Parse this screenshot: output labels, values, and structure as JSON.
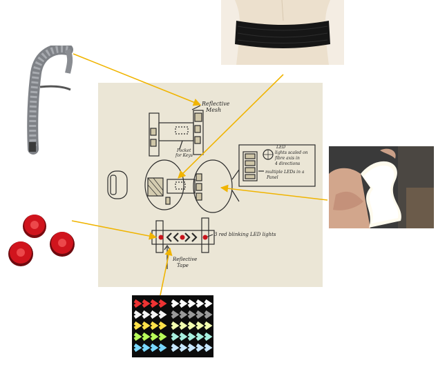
{
  "sketch": {
    "labels": {
      "mesh_line1": "Reflective",
      "mesh_line2": "Mesh",
      "pocket_line1": "Pocket",
      "pocket_line2": "for Keys",
      "panel_line1": "LED",
      "panel_line2": "lights scaled on",
      "panel_line3": "fibre axis in",
      "panel_line4": "4 directions",
      "panel_line5": "multiple LEDs in a",
      "panel_line6": "Panel",
      "blink": "3 red blinking LED lights",
      "tape_line1": "Reflective",
      "tape_line2": "Tape"
    }
  },
  "photos": {
    "strap": "reflective-mesh-strap",
    "belt": "elastic-waist-belt",
    "panel": "flexible-el-light-panel",
    "reflectors": "red-round-reflectors",
    "tape": "reflective-chevron-tape"
  },
  "colors": {
    "arrow": "#f0b400",
    "paper": "#ebe6d6",
    "red": "#c8141c"
  }
}
